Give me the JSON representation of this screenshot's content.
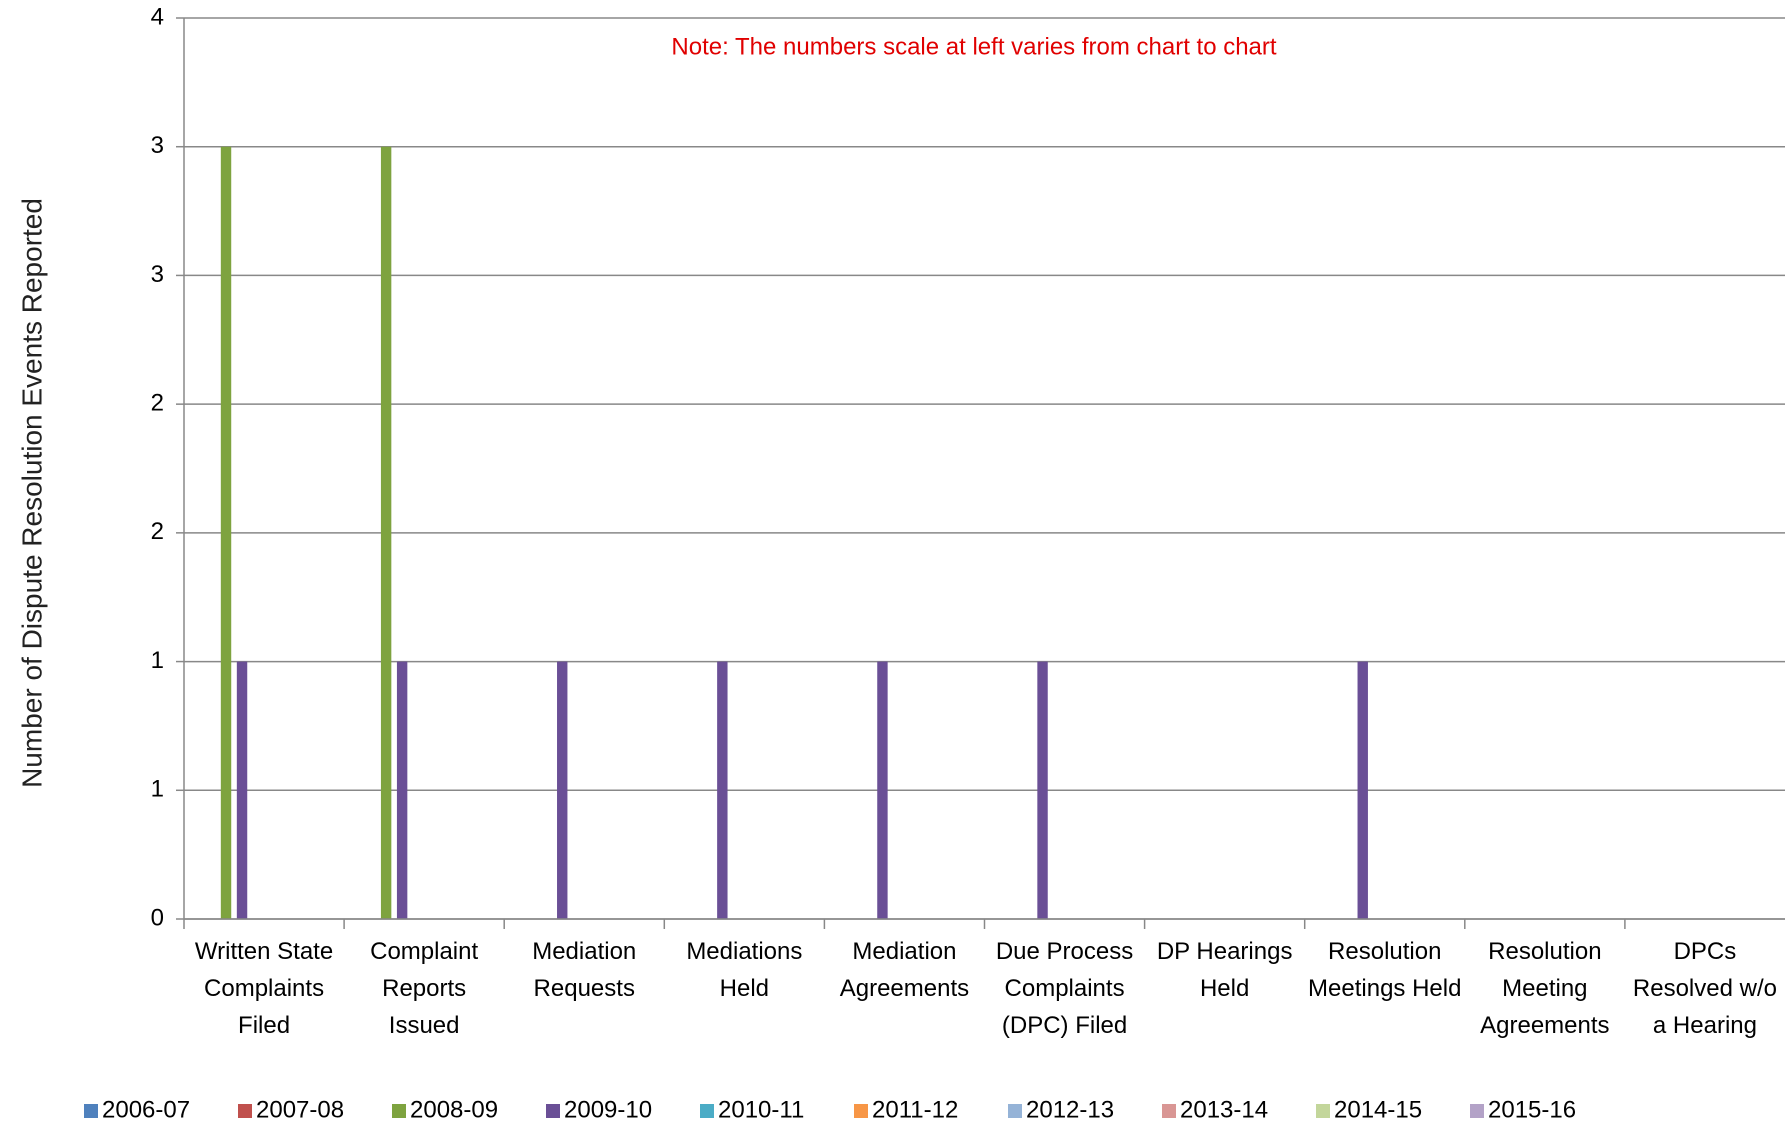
{
  "chart_data": {
    "type": "bar",
    "ylabel": "Number of Dispute Resolution Events Reported",
    "annotation": "Note:  The numbers scale at left varies from chart to chart",
    "categories": [
      "Written State Complaints Filed",
      "Complaint Reports Issued",
      "Mediation Requests",
      "Mediations Held",
      "Mediation Agreements",
      "Due Process Complaints (DPC) Filed",
      "DP Hearings Held",
      "Resolution Meetings Held",
      "Resolution Meeting Agreements",
      "DPCs Resolved w/o a Hearing"
    ],
    "series": [
      {
        "name": "2006-07",
        "color": "#4f81bd",
        "values": [
          0,
          0,
          0,
          0,
          0,
          0,
          0,
          0,
          0,
          0
        ]
      },
      {
        "name": "2007-08",
        "color": "#c0504d",
        "values": [
          0,
          0,
          0,
          0,
          0,
          0,
          0,
          0,
          0,
          0
        ]
      },
      {
        "name": "2008-09",
        "color": "#7ea33f",
        "values": [
          3,
          3,
          0,
          0,
          0,
          0,
          0,
          0,
          0,
          0
        ]
      },
      {
        "name": "2009-10",
        "color": "#6a4f96",
        "values": [
          1,
          1,
          1,
          1,
          1,
          1,
          0,
          1,
          0,
          0
        ]
      },
      {
        "name": "2010-11",
        "color": "#4bacc6",
        "values": [
          0,
          0,
          0,
          0,
          0,
          0,
          0,
          0,
          0,
          0
        ]
      },
      {
        "name": "2011-12",
        "color": "#f79646",
        "values": [
          0,
          0,
          0,
          0,
          0,
          0,
          0,
          0,
          0,
          0
        ]
      },
      {
        "name": "2012-13",
        "color": "#95b3d7",
        "values": [
          0,
          0,
          0,
          0,
          0,
          0,
          0,
          0,
          0,
          0
        ]
      },
      {
        "name": "2013-14",
        "color": "#d99694",
        "values": [
          0,
          0,
          0,
          0,
          0,
          0,
          0,
          0,
          0,
          0
        ]
      },
      {
        "name": "2014-15",
        "color": "#c3d69b",
        "values": [
          0,
          0,
          0,
          0,
          0,
          0,
          0,
          0,
          0,
          0
        ]
      },
      {
        "name": "2015-16",
        "color": "#b3a2c7",
        "values": [
          0,
          0,
          0,
          0,
          0,
          0,
          0,
          0,
          0,
          0
        ]
      }
    ],
    "ylim": [
      0,
      3.5
    ],
    "yticks": [
      0,
      {
        "value": 0.5,
        "label": "1"
      },
      1,
      {
        "value": 1.5,
        "label": "2"
      },
      2,
      {
        "value": 2.5,
        "label": "3"
      },
      3,
      {
        "value": 3.5,
        "label": "4"
      }
    ],
    "grid": true,
    "legend": "bottom"
  }
}
